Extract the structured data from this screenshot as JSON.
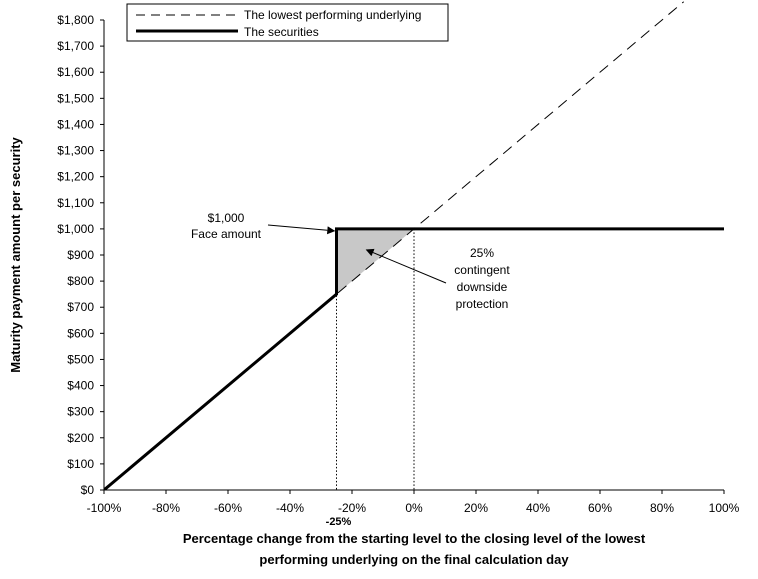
{
  "chart_data": {
    "type": "line",
    "xlabel_lines": [
      "Percentage change from the starting level to the closing level of the lowest",
      "performing underlying on the final calculation day"
    ],
    "ylabel": "Maturity payment amount per security",
    "xlim": [
      -100,
      100
    ],
    "ylim": [
      0,
      1800
    ],
    "x_ticks": [
      -100,
      -80,
      -60,
      -40,
      -20,
      0,
      20,
      40,
      60,
      80,
      100
    ],
    "x_tick_labels": [
      "-100%",
      "-80%",
      "-60%",
      "-40%",
      "-20%",
      "0%",
      "20%",
      "40%",
      "60%",
      "80%",
      "100%"
    ],
    "y_ticks": [
      0,
      100,
      200,
      300,
      400,
      500,
      600,
      700,
      800,
      900,
      1000,
      1100,
      1200,
      1300,
      1400,
      1500,
      1600,
      1700,
      1800
    ],
    "y_tick_labels": [
      "$0",
      "$100",
      "$200",
      "$300",
      "$400",
      "$500",
      "$600",
      "$700",
      "$800",
      "$900",
      "$1,000",
      "$1,100",
      "$1,200",
      "$1,300",
      "$1,400",
      "$1,500",
      "$1,600",
      "$1,700",
      "$1,800"
    ],
    "series": [
      {
        "name": "The lowest performing underlying",
        "style": "dashed",
        "x": [
          -100,
          87
        ],
        "y": [
          0,
          1870
        ]
      },
      {
        "name": "The securities",
        "style": "solid-bold",
        "x": [
          -100,
          -25,
          -25,
          100
        ],
        "y": [
          0,
          750,
          1000,
          1000
        ]
      }
    ],
    "shaded_region": {
      "x": [
        -25,
        -25,
        0
      ],
      "y": [
        750,
        1000,
        1000
      ],
      "color": "#c8c8c8"
    },
    "reference_lines": [
      {
        "x": -25,
        "label": "-25%"
      },
      {
        "x": 0,
        "label": "0%"
      }
    ],
    "annotations": [
      {
        "lines": [
          "$1,000",
          "Face amount"
        ],
        "arrow_to": [
          -25,
          1000
        ]
      },
      {
        "lines": [
          "25%",
          "contingent",
          "downside",
          "protection"
        ],
        "arrow_to": [
          -16,
          920
        ]
      }
    ],
    "legend_position": "top-left",
    "grid": false
  }
}
